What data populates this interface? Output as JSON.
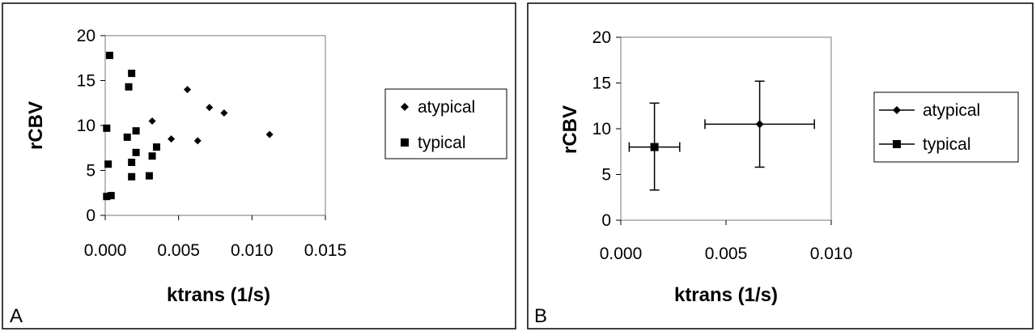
{
  "chart_data": [
    {
      "type": "scatter",
      "panel_label": "A",
      "xlabel": "ktrans (1/s)",
      "ylabel": "rCBV",
      "xlim": [
        0,
        0.015
      ],
      "ylim": [
        0,
        20
      ],
      "xticks": [
        "0.000",
        "0.005",
        "0.010",
        "0.015"
      ],
      "xtick_values": [
        0,
        0.005,
        0.01,
        0.015
      ],
      "yticks": [
        "0",
        "5",
        "10",
        "15",
        "20"
      ],
      "ytick_values": [
        0,
        5,
        10,
        15,
        20
      ],
      "grid": false,
      "legend_position": "right",
      "series": [
        {
          "name": "atypical",
          "marker": "diamond",
          "points": [
            {
              "x": 0.0032,
              "y": 10.5
            },
            {
              "x": 0.0045,
              "y": 8.5
            },
            {
              "x": 0.0056,
              "y": 14.0
            },
            {
              "x": 0.0063,
              "y": 8.3
            },
            {
              "x": 0.0071,
              "y": 12.0
            },
            {
              "x": 0.0081,
              "y": 11.4
            },
            {
              "x": 0.0112,
              "y": 9.0
            }
          ]
        },
        {
          "name": "typical",
          "marker": "square",
          "points": [
            {
              "x": 0.0003,
              "y": 17.8
            },
            {
              "x": 0.0018,
              "y": 15.8
            },
            {
              "x": 0.0016,
              "y": 14.3
            },
            {
              "x": 0.0001,
              "y": 9.7
            },
            {
              "x": 0.0021,
              "y": 9.4
            },
            {
              "x": 0.0015,
              "y": 8.7
            },
            {
              "x": 0.0035,
              "y": 7.6
            },
            {
              "x": 0.0021,
              "y": 7.0
            },
            {
              "x": 0.0032,
              "y": 6.6
            },
            {
              "x": 0.0018,
              "y": 5.9
            },
            {
              "x": 0.0002,
              "y": 5.7
            },
            {
              "x": 0.0018,
              "y": 4.3
            },
            {
              "x": 0.003,
              "y": 4.4
            },
            {
              "x": 0.0004,
              "y": 2.2
            },
            {
              "x": 0.0001,
              "y": 2.1
            }
          ]
        }
      ]
    },
    {
      "type": "scatter",
      "panel_label": "B",
      "xlabel": "ktrans (1/s)",
      "ylabel": "rCBV",
      "xlim": [
        0,
        0.01
      ],
      "ylim": [
        0,
        20
      ],
      "xticks": [
        "0.000",
        "0.005",
        "0.010"
      ],
      "xtick_values": [
        0,
        0.005,
        0.01
      ],
      "yticks": [
        "0",
        "5",
        "10",
        "15",
        "20"
      ],
      "ytick_values": [
        0,
        5,
        10,
        15,
        20
      ],
      "grid": false,
      "legend_position": "right",
      "error_bars": true,
      "series": [
        {
          "name": "atypical",
          "marker": "diamond",
          "points": [
            {
              "x": 0.0066,
              "y": 10.5,
              "x_low": 0.004,
              "x_high": 0.0092,
              "y_low": 5.8,
              "y_high": 15.2
            }
          ]
        },
        {
          "name": "typical",
          "marker": "square",
          "points": [
            {
              "x": 0.0016,
              "y": 8.0,
              "x_low": 0.0004,
              "x_high": 0.0028,
              "y_low": 3.3,
              "y_high": 12.8
            }
          ]
        }
      ]
    }
  ]
}
